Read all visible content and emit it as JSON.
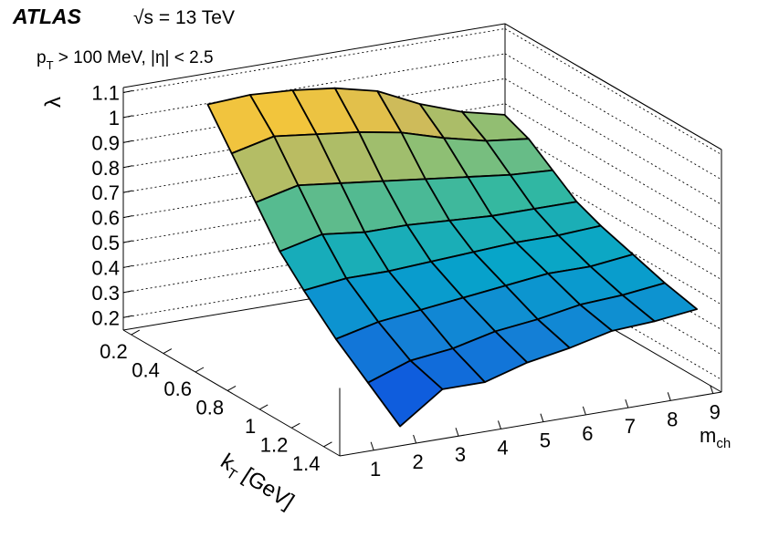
{
  "chart_data": {
    "type": "surface3d",
    "experiment": "ATLAS",
    "energy": "√s = 13 TeV",
    "selection": [
      "p",
      "T",
      " > 100 MeV, |η| < 2.5"
    ],
    "xlabel": [
      "k",
      "T",
      " [GeV]"
    ],
    "ylabel": [
      "m",
      "ch"
    ],
    "zlabel": "λ",
    "x": [
      0.2,
      0.35,
      0.5,
      0.65,
      0.8,
      1.0,
      1.2,
      1.4
    ],
    "y": [
      2,
      3,
      4,
      5,
      6,
      7,
      8,
      9
    ],
    "z": [
      [
        1.02,
        1.03,
        1.02,
        1.0,
        0.96,
        0.88,
        0.82,
        0.78
      ],
      [
        0.88,
        0.92,
        0.9,
        0.88,
        0.85,
        0.8,
        0.76,
        0.74
      ],
      [
        0.74,
        0.78,
        0.76,
        0.74,
        0.72,
        0.7,
        0.68,
        0.67
      ],
      [
        0.6,
        0.64,
        0.62,
        0.62,
        0.61,
        0.6,
        0.6,
        0.6
      ],
      [
        0.5,
        0.52,
        0.52,
        0.53,
        0.54,
        0.55,
        0.55,
        0.56
      ],
      [
        0.38,
        0.42,
        0.44,
        0.46,
        0.48,
        0.5,
        0.5,
        0.52
      ],
      [
        0.28,
        0.34,
        0.36,
        0.4,
        0.42,
        0.45,
        0.46,
        0.48
      ],
      [
        0.18,
        0.3,
        0.3,
        0.35,
        0.38,
        0.42,
        0.43,
        0.45
      ]
    ],
    "xlim": [
      0.15,
      1.5
    ],
    "xticks": [
      0.2,
      0.4,
      0.6,
      0.8,
      1,
      1.2,
      1.4
    ],
    "ylim": [
      0.2,
      9.2
    ],
    "yticks": [
      1,
      2,
      3,
      4,
      5,
      6,
      7,
      8,
      9
    ],
    "zlim": [
      0.15,
      1.12
    ],
    "zticks": [
      0.2,
      0.3,
      0.4,
      0.5,
      0.6,
      0.7,
      0.8,
      0.9,
      1,
      1.1
    ],
    "grid": true,
    "colormap": [
      "#352a87",
      "#0f5cdd",
      "#1481d6",
      "#06a4ca",
      "#2eb7a4",
      "#87bf77",
      "#d1bb59",
      "#fec832",
      "#f9fb0e"
    ]
  }
}
